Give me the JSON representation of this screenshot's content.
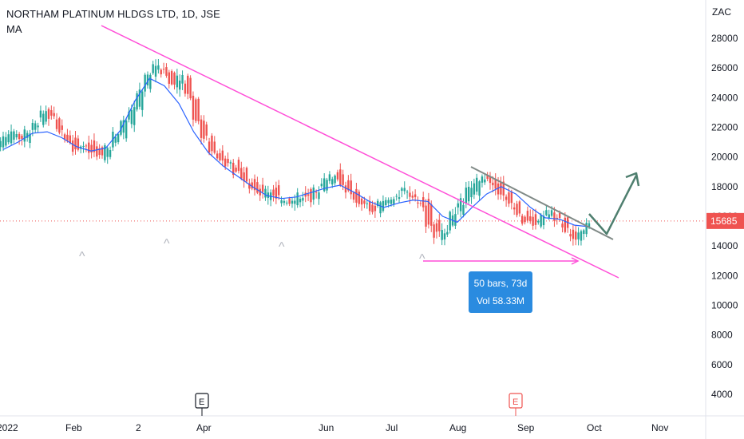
{
  "header": {
    "symbol_line": "NORTHAM PLATINUM HLDGS LTD, 1D, JSE",
    "indicator": "MA"
  },
  "colors": {
    "up": "#26a69a",
    "down": "#ef5350",
    "ma": "#2962ff",
    "trendline": "#ff4fd8",
    "projection": "#4f7f6f",
    "price_line": "#ef5350",
    "measure": "#2a8be0"
  },
  "chart_data": {
    "type": "candlestick",
    "currency": "ZAC",
    "ylim": [
      2800,
      29200
    ],
    "y_ticks": [
      4000,
      6000,
      8000,
      10000,
      12000,
      14000,
      16000,
      18000,
      20000,
      22000,
      24000,
      26000,
      28000
    ],
    "x_ticks": [
      "2022",
      "Feb",
      "2",
      "Apr",
      "Jun",
      "Jul",
      "Aug",
      "Sep",
      "Oct",
      "Nov"
    ],
    "last_price": 15685,
    "last_price_label": "15685",
    "measure": {
      "line1": "50 bars, 73d",
      "line2": "Vol 58.33M"
    },
    "earnings_markers": [
      "E",
      "E"
    ],
    "up_markers": [
      "^",
      "^",
      "^",
      "^"
    ],
    "description": "Daily candlesticks with moving average; descending pink trendline, descending grey channel line, green projection arrow",
    "ohlc_close_approx": [
      21200,
      21500,
      21300,
      21800,
      22300,
      23000,
      22600,
      21800,
      21200,
      20600,
      20800,
      20300,
      20000,
      20700,
      21500,
      22500,
      23300,
      24500,
      25500,
      26200,
      25700,
      24900,
      25400,
      24200,
      22500,
      21300,
      20300,
      19800,
      19500,
      19000,
      18600,
      18000,
      17500,
      17700,
      17300,
      17100,
      17000,
      17400,
      17200,
      17800,
      18400,
      18700,
      18300,
      17600,
      17000,
      16700,
      16400,
      16800,
      17100,
      17400,
      17800,
      17300,
      16800,
      15500,
      14800,
      15100,
      16300,
      17000,
      17800,
      18400,
      18700,
      18100,
      17600,
      16900,
      16300,
      15700,
      15500,
      15900,
      16200,
      15700,
      15100,
      14400,
      15100,
      15685
    ],
    "ma_approx": [
      20500,
      21000,
      21600,
      21700,
      21300,
      20700,
      20400,
      20600,
      21800,
      23800,
      25300,
      24800,
      23600,
      21700,
      20300,
      19400,
      18700,
      18000,
      17400,
      17200,
      17300,
      17600,
      17900,
      18100,
      17600,
      17000,
      16600,
      16900,
      17100,
      17000,
      16000,
      15600,
      16600,
      17500,
      18000,
      17500,
      16600,
      15900,
      15800,
      15400,
      15300
    ]
  }
}
